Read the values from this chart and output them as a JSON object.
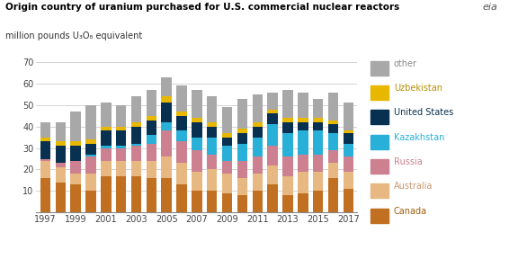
{
  "years": [
    1997,
    1998,
    1999,
    2000,
    2001,
    2002,
    2003,
    2004,
    2005,
    2006,
    2007,
    2008,
    2009,
    2010,
    2011,
    2012,
    2013,
    2014,
    2015,
    2016,
    2017
  ],
  "Canada": [
    16,
    14,
    13,
    10,
    17,
    17,
    17,
    16,
    16,
    13,
    10,
    10,
    9,
    8,
    10,
    13,
    8,
    9,
    10,
    16,
    11
  ],
  "Australia": [
    8,
    7,
    5,
    8,
    7,
    7,
    7,
    8,
    10,
    10,
    9,
    10,
    9,
    8,
    8,
    9,
    9,
    10,
    9,
    7,
    8
  ],
  "Russia": [
    1,
    2,
    6,
    8,
    6,
    6,
    7,
    8,
    12,
    10,
    10,
    7,
    6,
    8,
    8,
    9,
    9,
    8,
    8,
    6,
    7
  ],
  "Kazakhstan": [
    0,
    0,
    0,
    1,
    1,
    1,
    1,
    4,
    4,
    5,
    6,
    8,
    7,
    8,
    9,
    10,
    11,
    11,
    11,
    8,
    6
  ],
  "United States": [
    8,
    8,
    7,
    5,
    7,
    7,
    8,
    7,
    9,
    7,
    7,
    5,
    4,
    5,
    5,
    5,
    5,
    4,
    4,
    4,
    5
  ],
  "Uzbekistan": [
    2,
    2,
    2,
    2,
    2,
    2,
    2,
    2,
    3,
    2,
    2,
    2,
    2,
    2,
    2,
    2,
    2,
    2,
    2,
    2,
    1
  ],
  "other": [
    7,
    9,
    14,
    16,
    11,
    10,
    12,
    12,
    9,
    12,
    13,
    12,
    12,
    14,
    13,
    8,
    13,
    12,
    9,
    13,
    13
  ],
  "colors": {
    "Canada": "#c07020",
    "Australia": "#e8b882",
    "Russia": "#cc8090",
    "Kazakhstan": "#28b0d8",
    "United States": "#083050",
    "Uzbekistan": "#e8b800",
    "other": "#a8a8a8"
  },
  "title": "Origin country of uranium purchased for U.S. commercial nuclear reactors",
  "subtitle": "million pounds U₃O₈ equivalent",
  "ylim": [
    0,
    70
  ],
  "yticks": [
    0,
    10,
    20,
    30,
    40,
    50,
    60,
    70
  ],
  "stack_order": [
    "Canada",
    "Australia",
    "Russia",
    "Kazakhstan",
    "United States",
    "Uzbekistan",
    "other"
  ],
  "legend_order": [
    "other",
    "Uzbekistan",
    "United States",
    "Kazakhstan",
    "Russia",
    "Australia",
    "Canada"
  ],
  "text_colors": {
    "other": "#888888",
    "Uzbekistan": "#b89000",
    "United States": "#083050",
    "Kazakhstan": "#28b0d8",
    "Russia": "#cc8090",
    "Australia": "#c89870",
    "Canada": "#a06010"
  }
}
